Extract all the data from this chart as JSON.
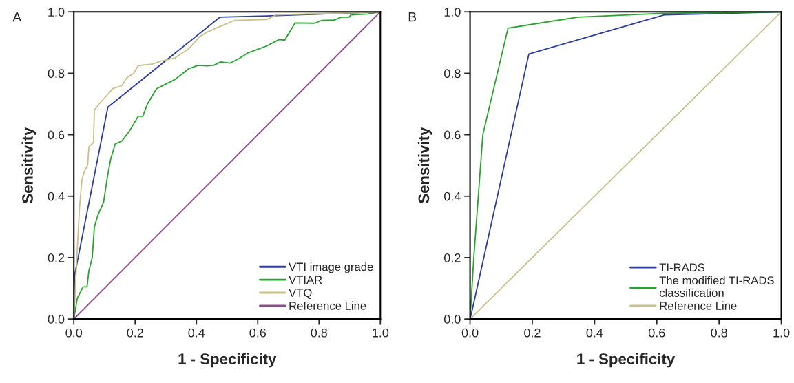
{
  "chart_data": [
    {
      "type": "line",
      "xlabel": "1 - Specificity",
      "ylabel": "Sensitivity",
      "annotations": [
        "A"
      ],
      "xlim": [
        0,
        1
      ],
      "ylim": [
        0,
        1
      ],
      "xticks": [
        {
          "value": 0,
          "label": "0.0"
        },
        {
          "value": 0.2,
          "label": "0.2"
        },
        {
          "value": 0.4,
          "label": "0.4"
        },
        {
          "value": 0.6,
          "label": "0.6"
        },
        {
          "value": 0.8,
          "label": "0.8"
        },
        {
          "value": 1,
          "label": "1.0"
        }
      ],
      "yticks": [
        {
          "value": 0,
          "label": "0.0"
        },
        {
          "value": 0.2,
          "label": "0.2"
        },
        {
          "value": 0.4,
          "label": "0.4"
        },
        {
          "value": 0.6,
          "label": "0.6"
        },
        {
          "value": 0.8,
          "label": "0.8"
        },
        {
          "value": 1,
          "label": "1.0"
        }
      ],
      "grid": false,
      "legend": "bottom right",
      "line_style": "solid",
      "marker": "none",
      "series": [
        {
          "name": "VTI image grade",
          "color": "#2c3e9c",
          "x": [
            0,
            0.002,
            0.111,
            0.477,
            0.63,
            1
          ],
          "values": [
            0,
            0.14,
            0.69,
            0.983,
            0.987,
            1
          ]
        },
        {
          "name": "VTIAR",
          "color": "#27a32e",
          "x": [
            0,
            0.011,
            0.03,
            0.043,
            0.049,
            0.06,
            0.067,
            0.079,
            0.097,
            0.109,
            0.12,
            0.135,
            0.157,
            0.18,
            0.21,
            0.225,
            0.24,
            0.27,
            0.33,
            0.375,
            0.405,
            0.434,
            0.456,
            0.479,
            0.509,
            0.539,
            0.569,
            0.629,
            0.67,
            0.688,
            0.722,
            0.786,
            0.808,
            0.85,
            0.872,
            0.898,
            0.904,
            0.958,
            1
          ],
          "values": [
            0,
            0.067,
            0.105,
            0.105,
            0.157,
            0.2,
            0.3,
            0.34,
            0.38,
            0.46,
            0.52,
            0.57,
            0.58,
            0.61,
            0.66,
            0.66,
            0.7,
            0.75,
            0.78,
            0.815,
            0.826,
            0.824,
            0.826,
            0.837,
            0.833,
            0.848,
            0.867,
            0.889,
            0.91,
            0.908,
            0.964,
            0.963,
            0.972,
            0.973,
            0.983,
            0.983,
            0.99,
            0.993,
            1
          ]
        },
        {
          "name": "VTQ",
          "color": "#c9c08a",
          "x": [
            0,
            0.006,
            0.009,
            0.019,
            0.026,
            0.034,
            0.045,
            0.049,
            0.064,
            0.067,
            0.082,
            0.105,
            0.127,
            0.157,
            0.172,
            0.195,
            0.21,
            0.255,
            0.285,
            0.33,
            0.375,
            0.411,
            0.434,
            0.479,
            0.524,
            0.629,
            0.659,
            1
          ],
          "values": [
            0,
            0.12,
            0.19,
            0.37,
            0.45,
            0.48,
            0.5,
            0.56,
            0.575,
            0.68,
            0.7,
            0.725,
            0.75,
            0.76,
            0.785,
            0.8,
            0.825,
            0.83,
            0.84,
            0.85,
            0.88,
            0.92,
            0.934,
            0.953,
            0.972,
            0.975,
            0.99,
            1
          ]
        },
        {
          "name": "Reference Line",
          "color": "#8b4a8b",
          "x": [
            0,
            1
          ],
          "values": [
            0,
            1
          ]
        }
      ]
    },
    {
      "type": "line",
      "xlabel": "1 - Specificity",
      "ylabel": "Sensitivity",
      "annotations": [
        "B"
      ],
      "xlim": [
        0,
        1
      ],
      "ylim": [
        0,
        1
      ],
      "xticks": [
        {
          "value": 0,
          "label": "0.0"
        },
        {
          "value": 0.2,
          "label": "0.2"
        },
        {
          "value": 0.4,
          "label": "0.4"
        },
        {
          "value": 0.6,
          "label": "0.6"
        },
        {
          "value": 0.8,
          "label": "0.8"
        },
        {
          "value": 1,
          "label": "1.0"
        }
      ],
      "yticks": [
        {
          "value": 0,
          "label": "0.0"
        },
        {
          "value": 0.2,
          "label": "0.2"
        },
        {
          "value": 0.4,
          "label": "0.4"
        },
        {
          "value": 0.6,
          "label": "0.6"
        },
        {
          "value": 0.8,
          "label": "0.8"
        },
        {
          "value": 1,
          "label": "1.0"
        }
      ],
      "grid": false,
      "legend": "bottom right",
      "line_style": "solid",
      "marker": "none",
      "series": [
        {
          "name": "TI-RADS",
          "color": "#2c3e9c",
          "x": [
            0,
            0.007,
            0.189,
            0.624,
            1
          ],
          "values": [
            0,
            0.03,
            0.863,
            0.99,
            1
          ]
        },
        {
          "name": "The modified TI-RADS\nclassification",
          "color": "#27a32e",
          "x": [
            0,
            0.012,
            0.041,
            0.122,
            0.347,
            0.62,
            1
          ],
          "values": [
            0,
            0.2,
            0.6,
            0.947,
            0.983,
            0.995,
            1
          ]
        },
        {
          "name": "Reference Line",
          "color": "#c9c08a",
          "x": [
            0,
            1
          ],
          "values": [
            0,
            1
          ]
        }
      ]
    }
  ]
}
